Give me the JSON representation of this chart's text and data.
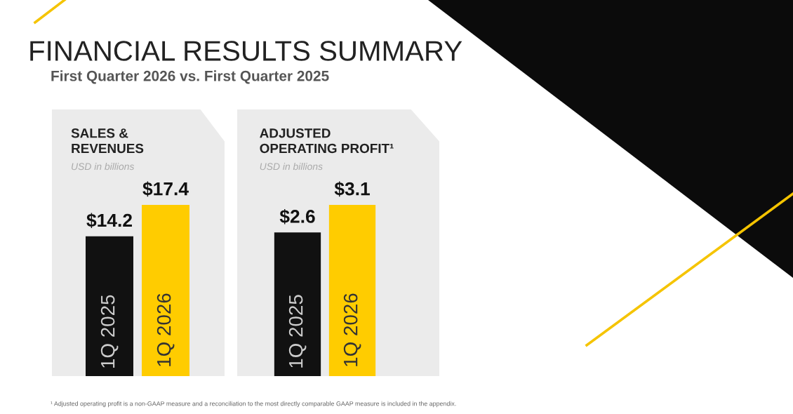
{
  "chart_data": [
    {
      "type": "other",
      "title": "FINANCIAL RESULTS SUMMARY",
      "subtitle": "First Quarter 2026 vs. First Quarter 2025",
      "annotations": [
        "¹ Adjusted operating profit is a non-GAAP measure and a reconciliation to the most directly comparable GAAP measure is included in the appendix."
      ]
    },
    {
      "type": "bar",
      "title": "SALES &\nREVENUES",
      "subtitle": "USD in billions",
      "categories": [
        "1Q 2025",
        "1Q 2026"
      ],
      "values": [
        14.2,
        17.4
      ],
      "colors": [
        "#111111",
        "#ffcc00"
      ],
      "value_labels": [
        "$14.2",
        "$17.4"
      ]
    },
    {
      "type": "bar",
      "title": "ADJUSTED\nOPERATING PROFIT¹",
      "subtitle": "USD in billions",
      "categories": [
        "1Q 2025",
        "1Q 2026"
      ],
      "values": [
        2.6,
        3.1
      ],
      "colors": [
        "#111111",
        "#ffcc00"
      ],
      "value_labels": [
        "$2.6",
        "$3.1"
      ]
    }
  ]
}
